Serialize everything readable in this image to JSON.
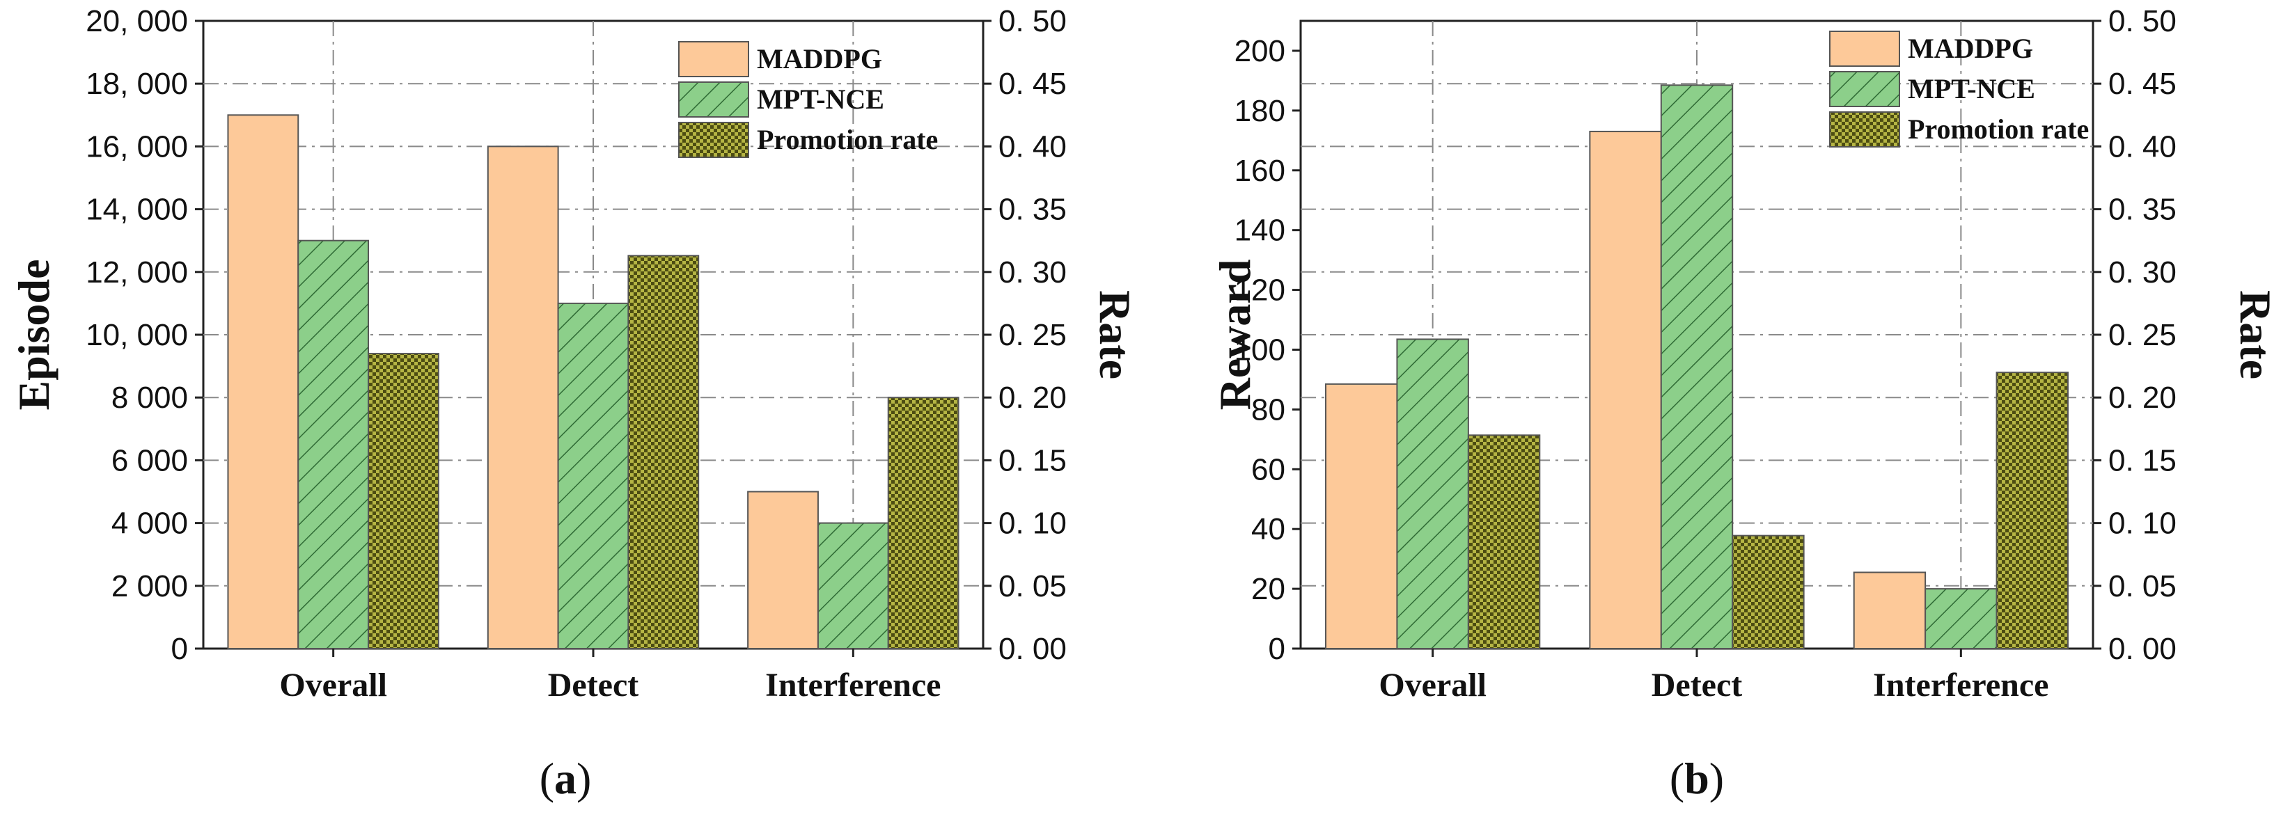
{
  "chart_data": [
    {
      "panel": "a",
      "panel_label": "(a)",
      "type": "bar",
      "categories": [
        "Overall",
        "Detect",
        "Interference"
      ],
      "series": [
        {
          "name": "MADDPG",
          "axis": "left",
          "color": "#fdc999",
          "pattern": "solid",
          "values": [
            17000,
            16000,
            5000
          ]
        },
        {
          "name": "MPT-NCE",
          "axis": "left",
          "color": "#8ccf8a",
          "pattern": "diagonal-hatch",
          "values": [
            13000,
            11000,
            4000
          ]
        },
        {
          "name": "Promotion rate",
          "axis": "right",
          "color": "#a4a43a",
          "pattern": "checker",
          "values": [
            0.235,
            0.313,
            0.2
          ]
        }
      ],
      "ylabel": "Episode",
      "ylabel_right": "Rate",
      "ylim": [
        0,
        20000
      ],
      "ylim_right": [
        0,
        0.5
      ],
      "yticks": [
        "0",
        "2 000",
        "4 000",
        "6 000",
        "8 000",
        "10, 000",
        "12, 000",
        "14, 000",
        "16, 000",
        "18, 000",
        "20, 000"
      ],
      "yticks_right": [
        "0. 00",
        "0. 05",
        "0. 10",
        "0. 15",
        "0. 20",
        "0. 25",
        "0. 30",
        "0. 35",
        "0. 40",
        "0. 45",
        "0. 50"
      ],
      "grid": true,
      "legend": "top-right"
    },
    {
      "panel": "b",
      "panel_label": "(b)",
      "type": "bar",
      "categories": [
        "Overall",
        "Detect",
        "Interference"
      ],
      "series": [
        {
          "name": "MADDPG",
          "axis": "left",
          "color": "#fdc999",
          "pattern": "solid",
          "values": [
            88.5,
            173,
            25.5
          ]
        },
        {
          "name": "MPT-NCE",
          "axis": "left",
          "color": "#8ccf8a",
          "pattern": "diagonal-hatch",
          "values": [
            103.5,
            188.5,
            20
          ]
        },
        {
          "name": "Promotion rate",
          "axis": "right",
          "color": "#a4a43a",
          "pattern": "checker",
          "values": [
            0.17,
            0.09,
            0.22
          ]
        }
      ],
      "ylabel": "Reward",
      "ylabel_right": "Rate",
      "ylim": [
        0,
        210
      ],
      "ylim_right": [
        0,
        0.5
      ],
      "yticks": [
        "0",
        "20",
        "40",
        "60",
        "80",
        "100",
        "120",
        "140",
        "160",
        "180",
        "200"
      ],
      "yticks_right": [
        "0. 00",
        "0. 05",
        "0. 10",
        "0. 15",
        "0. 20",
        "0. 25",
        "0. 30",
        "0. 35",
        "0. 40",
        "0. 45",
        "0. 50"
      ],
      "grid": true,
      "legend": "top-right"
    }
  ]
}
